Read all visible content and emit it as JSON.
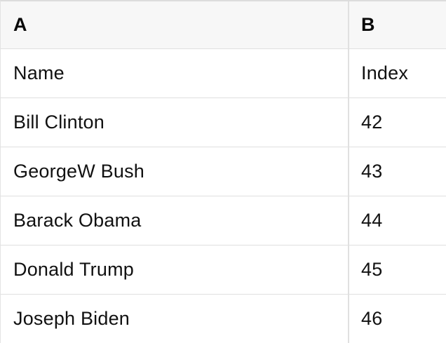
{
  "table": {
    "column_headers": [
      {
        "label": "A"
      },
      {
        "label": "B"
      }
    ],
    "rows": [
      {
        "a": "Name",
        "b": "Index"
      },
      {
        "a": "Bill Clinton",
        "b": "42"
      },
      {
        "a": "GeorgeW Bush",
        "b": "43"
      },
      {
        "a": "Barack Obama",
        "b": "44"
      },
      {
        "a": "Donald Trump",
        "b": "45"
      },
      {
        "a": "Joseph Biden",
        "b": "46"
      }
    ]
  },
  "colors": {
    "header_background": "#f7f7f7",
    "row_background": "#ffffff",
    "gridline": "#e0e0e0",
    "text": "#111111"
  }
}
